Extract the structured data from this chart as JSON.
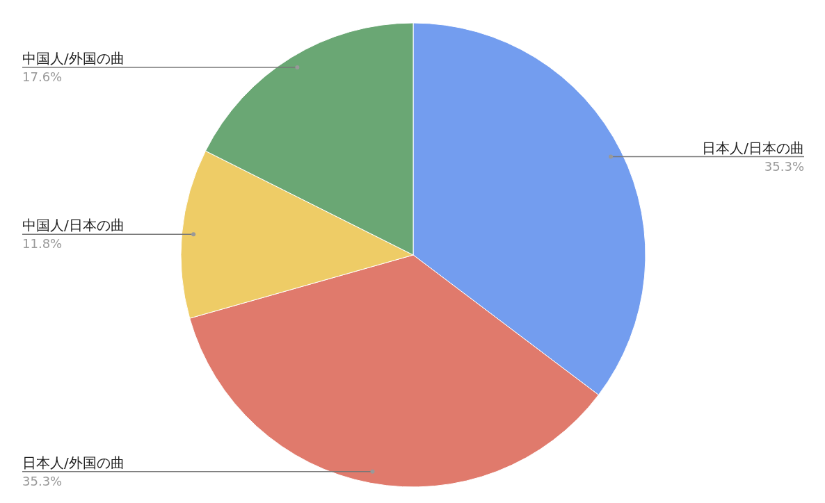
{
  "chart_data": {
    "type": "pie",
    "categories": [
      "日本人/日本の曲",
      "日本人/外国の曲",
      "中国人/日本の曲",
      "中国人/外国の曲"
    ],
    "values": [
      35.3,
      35.3,
      11.8,
      17.6
    ],
    "colors": [
      "#739def",
      "#e07a6c",
      "#eecc66",
      "#6aa774"
    ],
    "value_labels": [
      "35.3%",
      "35.3%",
      "11.8%",
      "17.6%"
    ]
  }
}
